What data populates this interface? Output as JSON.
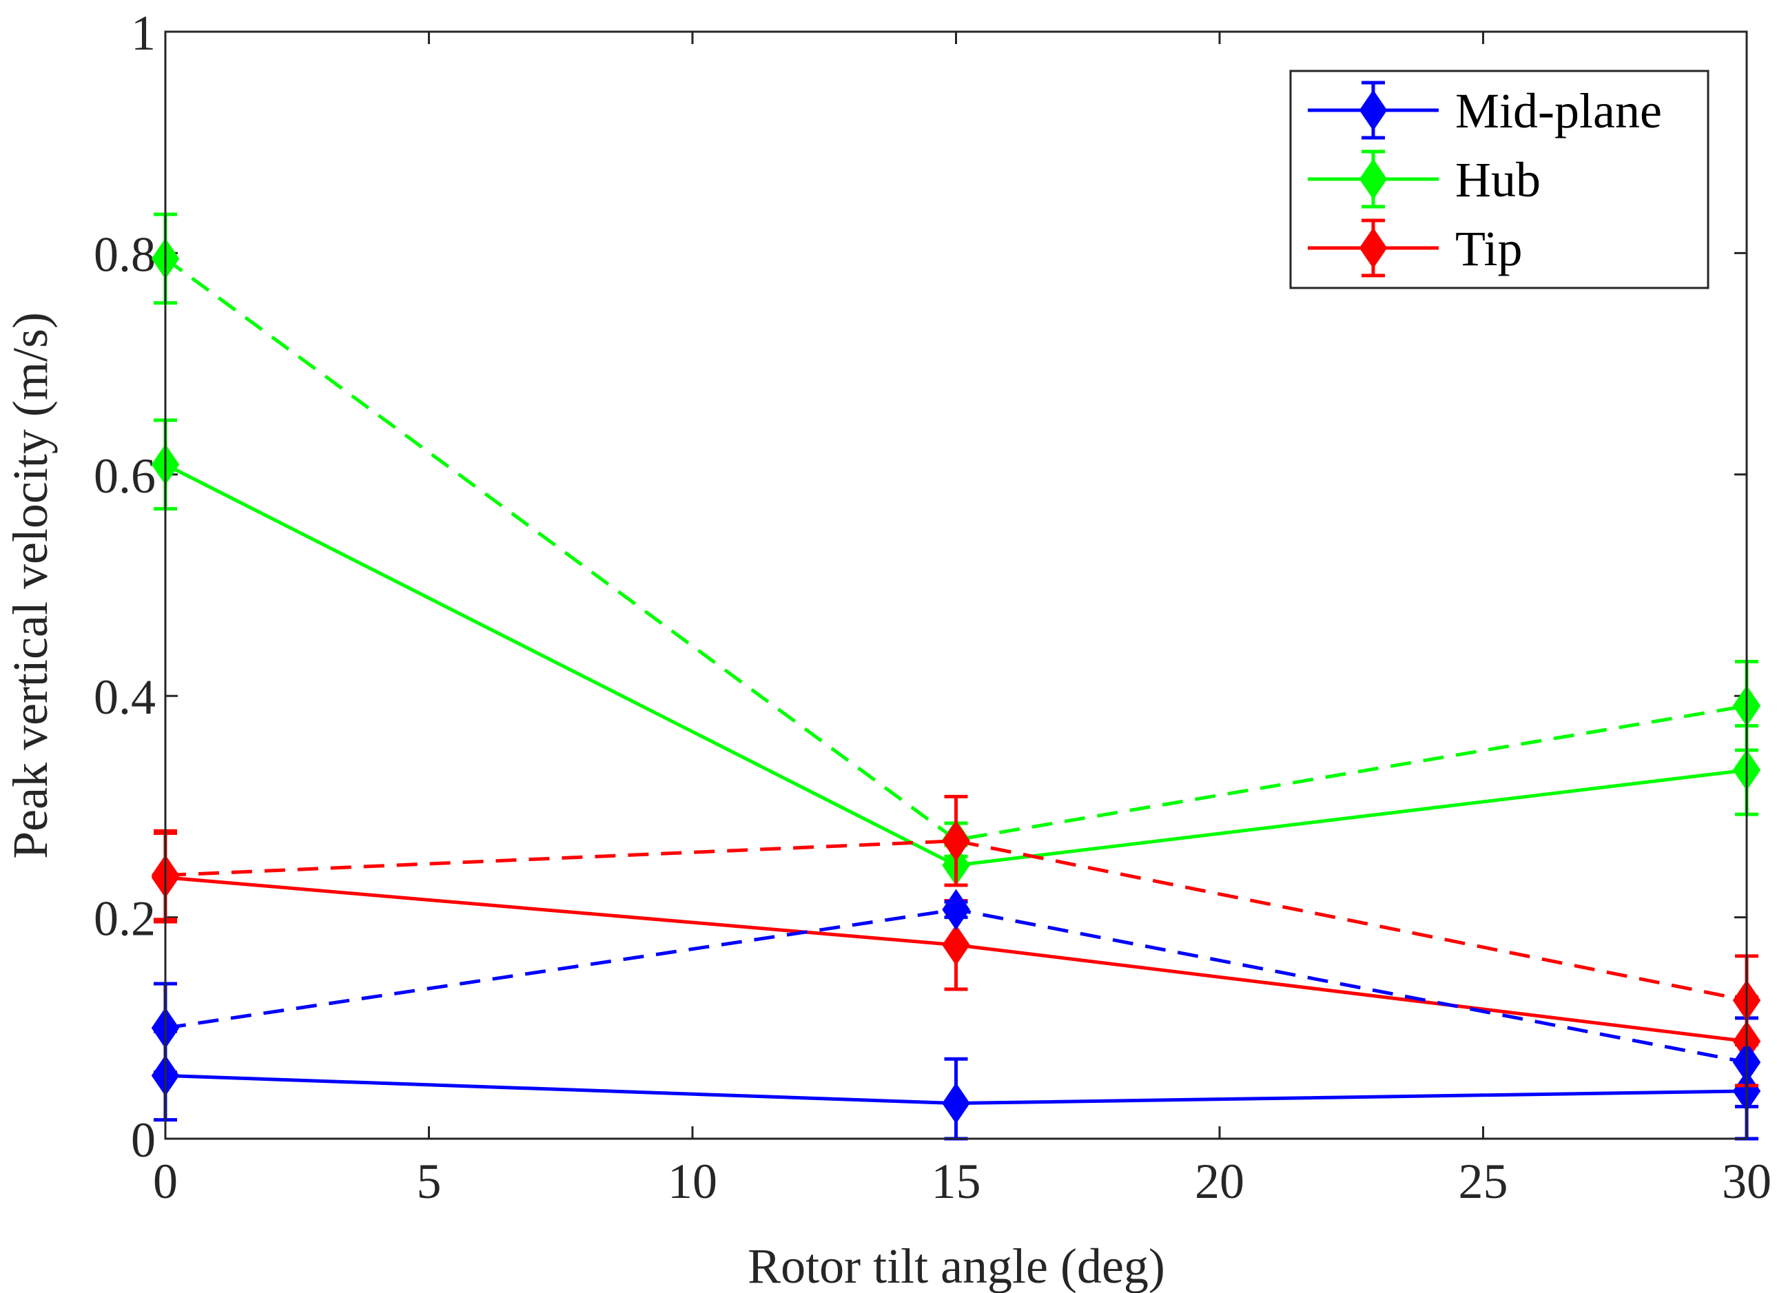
{
  "chart_data": {
    "type": "line",
    "title": "",
    "xlabel": "Rotor tilt angle (deg)",
    "ylabel": "Peak vertical velocity (m/s)",
    "xlim": [
      0,
      30
    ],
    "ylim": [
      0,
      1
    ],
    "xticks": [
      0,
      5,
      10,
      15,
      20,
      25,
      30
    ],
    "xtick_labels": [
      "0",
      "5",
      "10",
      "15",
      "20",
      "25",
      "30"
    ],
    "yticks": [
      0,
      0.2,
      0.4,
      0.6,
      0.8,
      1
    ],
    "ytick_labels": [
      "0",
      "0.2",
      "0.4",
      "0.6",
      "0.8",
      "1"
    ],
    "grid": false,
    "legend_position": "top-right",
    "x": [
      0,
      15,
      30
    ],
    "series": [
      {
        "name": "Mid-plane",
        "color": "#0000ff",
        "line": "solid",
        "marker": "diamond",
        "in_legend": true,
        "values": [
          0.057,
          0.032,
          0.043
        ],
        "errors": [
          0.04,
          0.04,
          0.043
        ]
      },
      {
        "name": "Hub",
        "color": "#00ff00",
        "line": "solid",
        "marker": "diamond",
        "in_legend": true,
        "values": [
          0.609,
          0.247,
          0.333
        ],
        "errors": [
          0.04,
          0.018,
          0.04
        ]
      },
      {
        "name": "Tip",
        "color": "#ff0000",
        "line": "solid",
        "marker": "diamond",
        "in_legend": true,
        "values": [
          0.236,
          0.175,
          0.088
        ],
        "errors": [
          0.04,
          0.04,
          0.04
        ]
      },
      {
        "name": "Mid-plane (dashed)",
        "color": "#0000ff",
        "line": "dashed",
        "marker": "diamond",
        "in_legend": false,
        "values": [
          0.1,
          0.207,
          0.069
        ],
        "errors": [
          0.04,
          0.007,
          0.04
        ]
      },
      {
        "name": "Hub (dashed)",
        "color": "#00ff00",
        "line": "dashed",
        "marker": "diamond",
        "in_legend": false,
        "values": [
          0.795,
          0.27,
          0.391
        ],
        "errors": [
          0.04,
          0.015,
          0.04
        ]
      },
      {
        "name": "Tip (dashed)",
        "color": "#ff0000",
        "line": "dashed",
        "marker": "diamond",
        "in_legend": false,
        "values": [
          0.238,
          0.269,
          0.125
        ],
        "errors": [
          0.04,
          0.04,
          0.04
        ]
      }
    ]
  }
}
